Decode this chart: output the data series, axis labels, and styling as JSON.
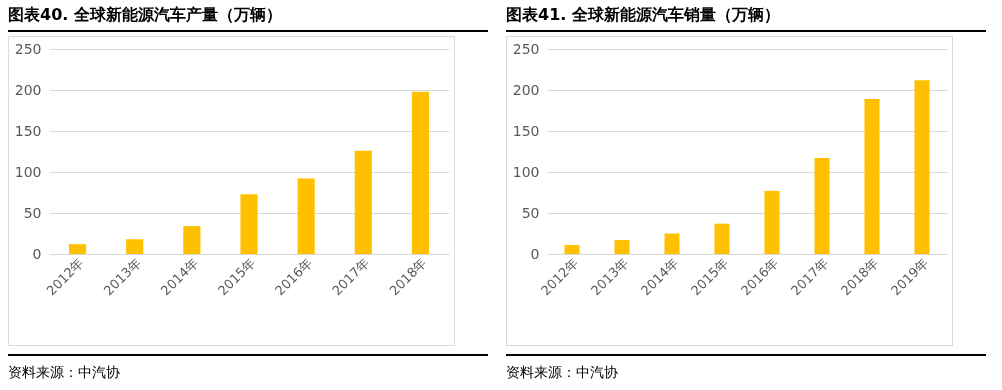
{
  "chart_data": [
    {
      "type": "bar",
      "title": "图表40.  全球新能源汽车产量（万辆）",
      "categories": [
        "2012年",
        "2013年",
        "2014年",
        "2015年",
        "2016年",
        "2017年",
        "2018年"
      ],
      "values": [
        12,
        18,
        34,
        73,
        92,
        126,
        198
      ],
      "color": "#ffc000",
      "ylim": [
        0,
        250
      ],
      "yticks": [
        0,
        50,
        100,
        150,
        200,
        250
      ],
      "grid": "y",
      "annotations": [
        "资料来源：中汽协"
      ]
    },
    {
      "type": "bar",
      "title": "图表41.  全球新能源汽车销量（万辆）",
      "categories": [
        "2012年",
        "2013年",
        "2014年",
        "2015年",
        "2016年",
        "2017年",
        "2018年",
        "2019年"
      ],
      "values": [
        11,
        17,
        25,
        37,
        77,
        117,
        189,
        212
      ],
      "color": "#ffc000",
      "ylim": [
        0,
        250
      ],
      "yticks": [
        0,
        50,
        100,
        150,
        200,
        250
      ],
      "grid": "y",
      "annotations": [
        "资料来源：中汽协"
      ]
    }
  ]
}
